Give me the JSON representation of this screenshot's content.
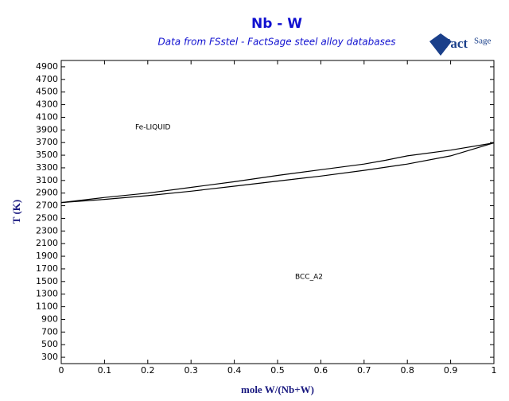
{
  "chart_data": {
    "type": "line",
    "title": "Nb - W",
    "subtitle": "Data from FSstel - FactSage steel alloy databases",
    "logo": {
      "main": "Fact",
      "sub": "Sage"
    },
    "x_label": "mole W/(Nb+W)",
    "y_label": "T (K)",
    "xlim": [
      0,
      1
    ],
    "xticks": [
      0,
      0.1,
      0.2,
      0.3,
      0.4,
      0.5,
      0.6,
      0.7,
      0.8,
      0.9,
      1
    ],
    "ylim": [
      200,
      5000
    ],
    "yticks": [
      300,
      500,
      700,
      900,
      1100,
      1300,
      1500,
      1700,
      1900,
      2100,
      2300,
      2500,
      2700,
      2900,
      3100,
      3300,
      3500,
      3700,
      3900,
      4100,
      4300,
      4500,
      4700,
      4900
    ],
    "series": [
      {
        "color": "#000000",
        "x": [
          0,
          0.1,
          0.2,
          0.3,
          0.4,
          0.5,
          0.6,
          0.7,
          0.75,
          0.8,
          0.9,
          1
        ],
        "values": [
          2750,
          2830,
          2900,
          2990,
          3080,
          3180,
          3270,
          3360,
          3420,
          3490,
          3580,
          3695
        ]
      },
      {
        "color": "#000000",
        "x": [
          0,
          0.1,
          0.2,
          0.3,
          0.4,
          0.5,
          0.6,
          0.7,
          0.8,
          0.9,
          1
        ],
        "values": [
          2750,
          2800,
          2860,
          2930,
          3010,
          3090,
          3170,
          3260,
          3360,
          3490,
          3695
        ]
      }
    ],
    "annotations": [
      "Fe-LIQUID",
      "BCC_A2"
    ]
  }
}
